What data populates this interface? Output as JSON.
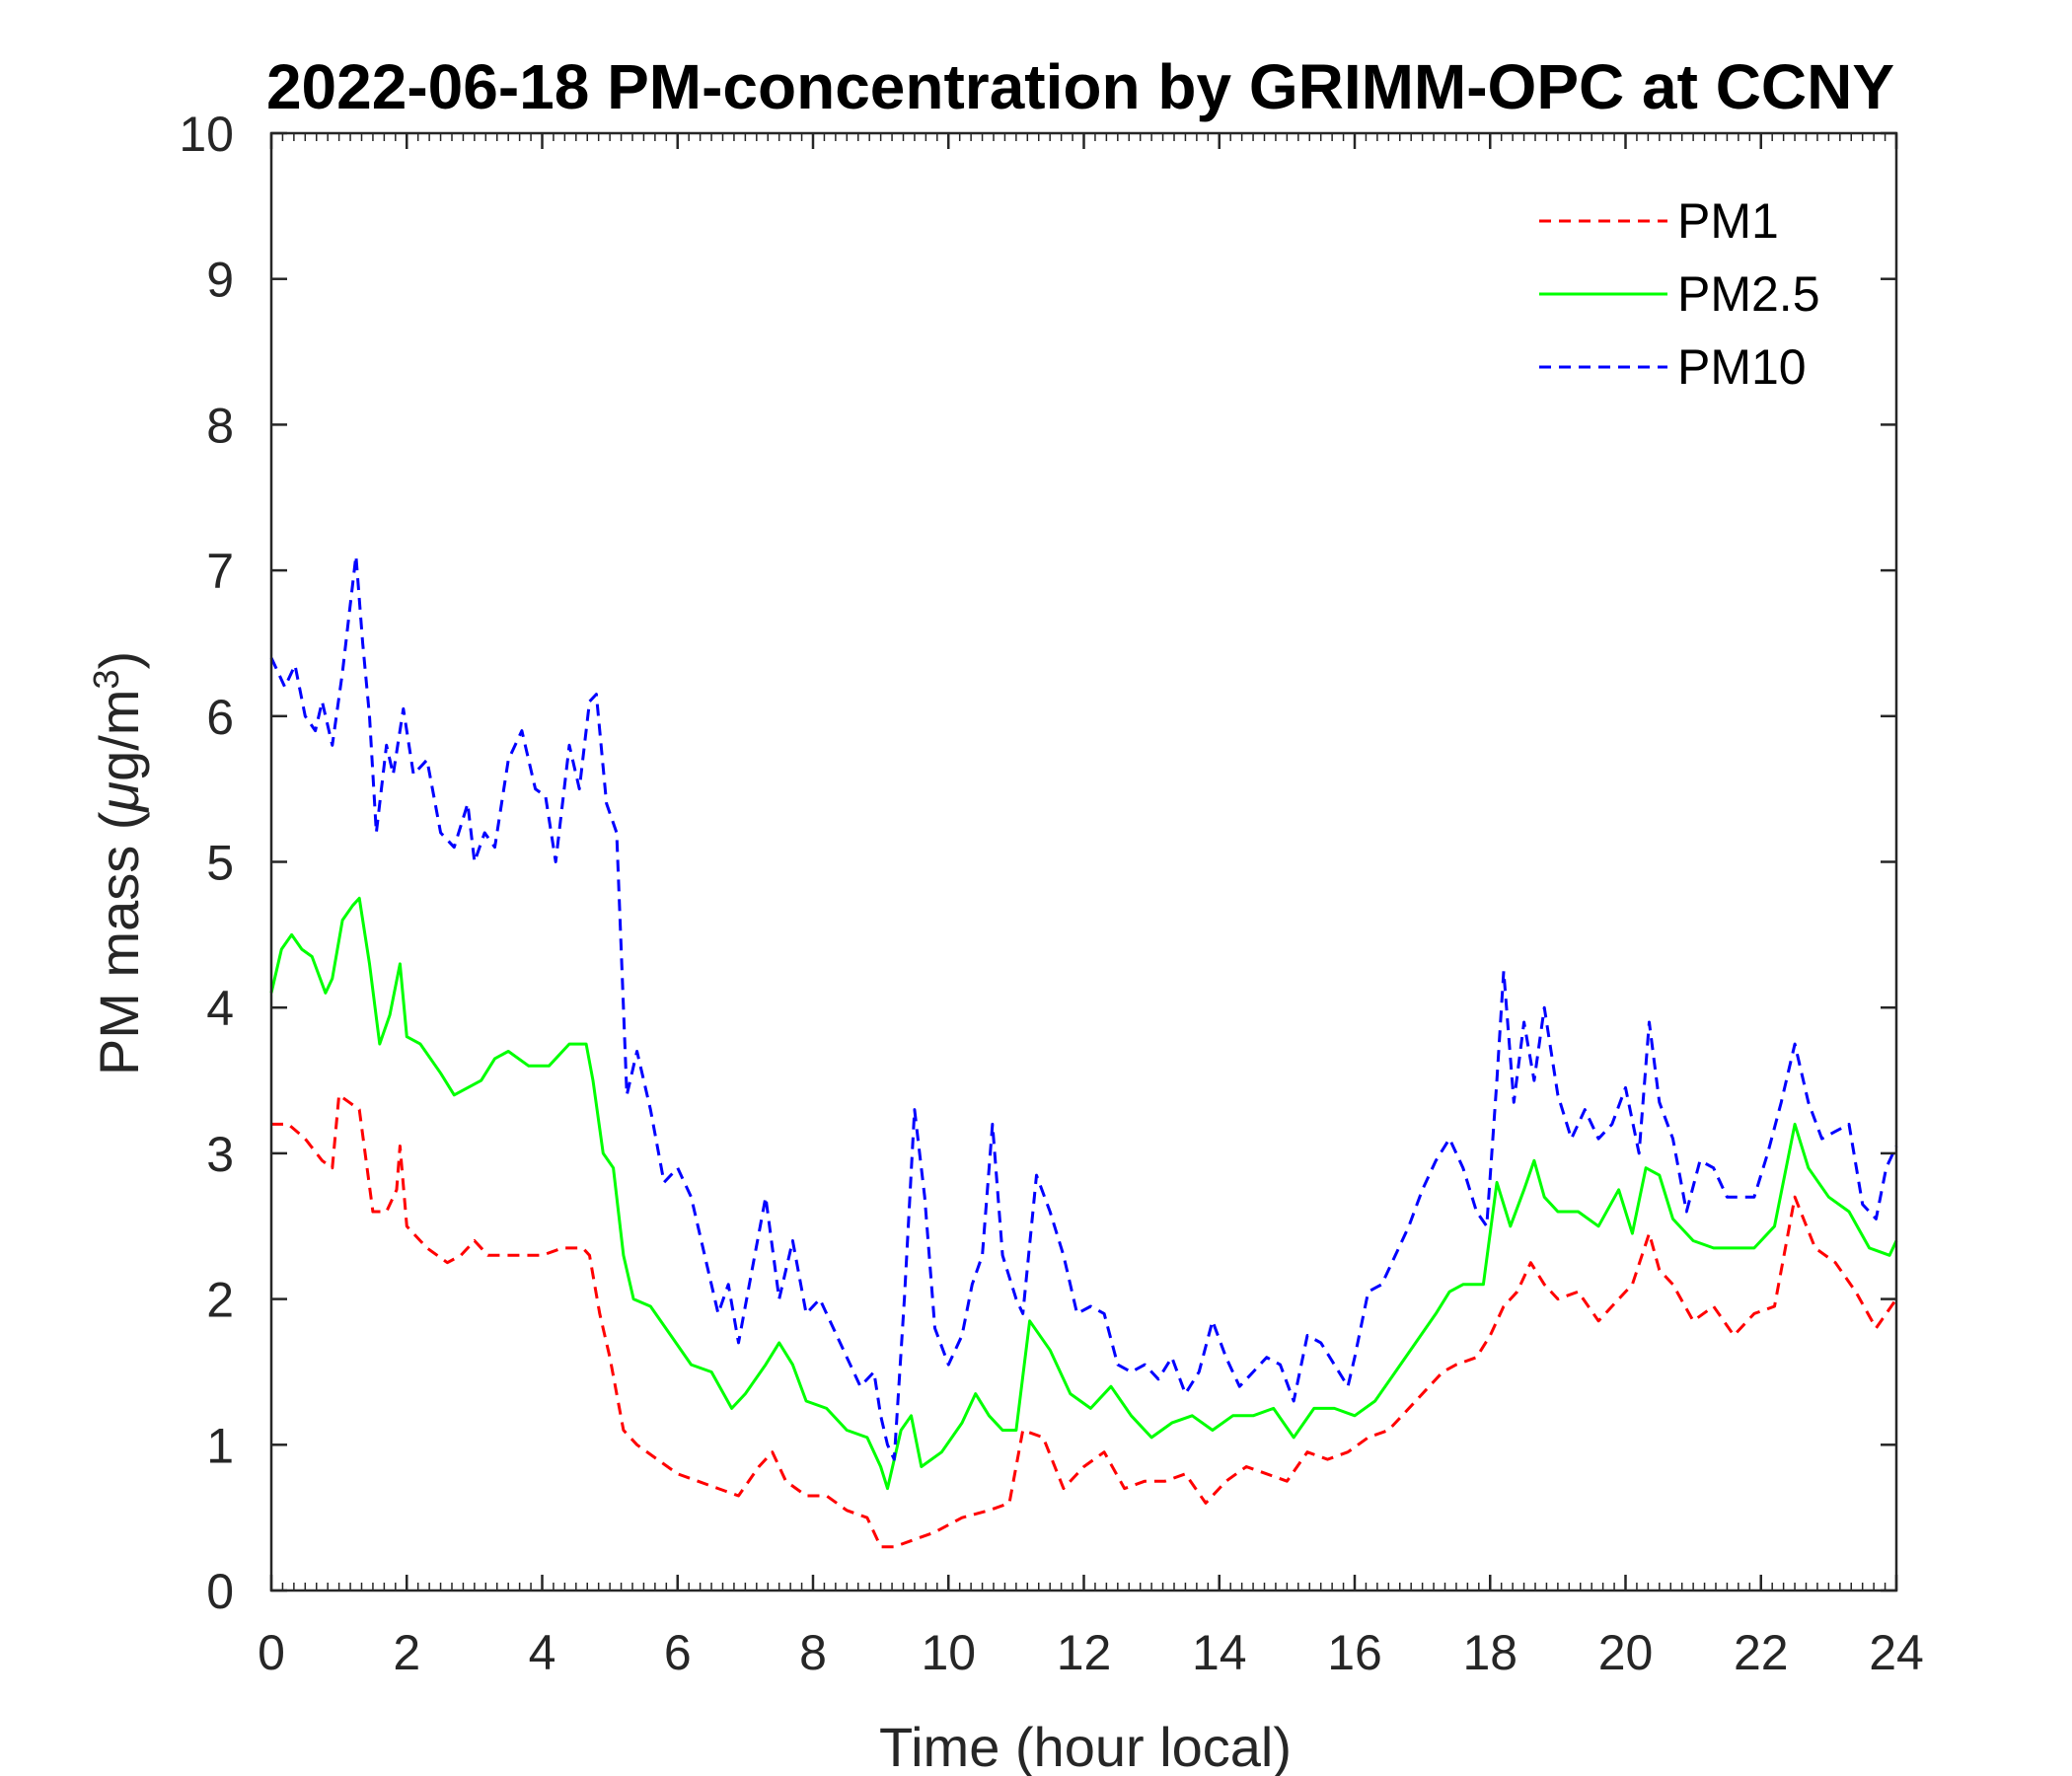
{
  "chart_data": {
    "type": "line",
    "title": "2022-06-18 PM-concentration by GRIMM-OPC at CCNY",
    "xlabel": "Time (hour local)",
    "ylabel": "PM mass (μg/m³)",
    "ylabel_parts": {
      "main": "PM mass (",
      "mu": "μ",
      "unit": "g/m",
      "sup": "3",
      "close": ")"
    },
    "xlim": [
      0,
      24
    ],
    "ylim": [
      0,
      10
    ],
    "x_ticks": [
      0,
      2,
      4,
      6,
      8,
      10,
      12,
      14,
      16,
      18,
      20,
      22,
      24
    ],
    "y_ticks": [
      0,
      1,
      2,
      3,
      4,
      5,
      6,
      7,
      8,
      9,
      10
    ],
    "grid": false,
    "legend_position": "top-right",
    "series": [
      {
        "name": "PM1",
        "color": "#ff0000",
        "style": "dashed",
        "x": [
          0,
          0.25,
          0.5,
          0.75,
          0.9,
          1.0,
          1.15,
          1.3,
          1.5,
          1.7,
          1.85,
          1.9,
          2.0,
          2.3,
          2.6,
          2.8,
          3.0,
          3.2,
          3.5,
          3.8,
          4.0,
          4.3,
          4.6,
          4.7,
          4.85,
          5.0,
          5.2,
          5.4,
          5.7,
          6.0,
          6.3,
          6.6,
          6.9,
          7.2,
          7.4,
          7.6,
          7.9,
          8.2,
          8.5,
          8.8,
          9.0,
          9.2,
          9.5,
          9.8,
          10.2,
          10.6,
          10.9,
          11.1,
          11.4,
          11.7,
          12.0,
          12.3,
          12.6,
          12.9,
          13.2,
          13.5,
          13.8,
          14.1,
          14.4,
          14.7,
          15.0,
          15.3,
          15.6,
          15.9,
          16.2,
          16.5,
          16.8,
          17.1,
          17.3,
          17.5,
          17.8,
          18.0,
          18.2,
          18.4,
          18.6,
          18.8,
          19.0,
          19.3,
          19.6,
          19.9,
          20.1,
          20.35,
          20.5,
          20.7,
          21.0,
          21.3,
          21.6,
          21.9,
          22.2,
          22.5,
          22.8,
          23.1,
          23.4,
          23.7,
          24.0
        ],
        "values": [
          3.2,
          3.2,
          3.1,
          2.95,
          2.9,
          3.4,
          3.35,
          3.3,
          2.6,
          2.6,
          2.75,
          3.05,
          2.5,
          2.35,
          2.25,
          2.3,
          2.4,
          2.3,
          2.3,
          2.3,
          2.3,
          2.35,
          2.35,
          2.3,
          1.9,
          1.6,
          1.1,
          1.0,
          0.9,
          0.8,
          0.75,
          0.7,
          0.65,
          0.85,
          0.95,
          0.75,
          0.65,
          0.65,
          0.55,
          0.5,
          0.3,
          0.3,
          0.35,
          0.4,
          0.5,
          0.55,
          0.6,
          1.1,
          1.05,
          0.7,
          0.85,
          0.95,
          0.7,
          0.75,
          0.75,
          0.8,
          0.6,
          0.75,
          0.85,
          0.8,
          0.75,
          0.95,
          0.9,
          0.95,
          1.05,
          1.1,
          1.25,
          1.4,
          1.5,
          1.55,
          1.6,
          1.75,
          1.95,
          2.05,
          2.25,
          2.1,
          2.0,
          2.05,
          1.85,
          2.0,
          2.1,
          2.45,
          2.2,
          2.1,
          1.85,
          1.95,
          1.75,
          1.9,
          1.95,
          2.7,
          2.35,
          2.25,
          2.05,
          1.8,
          2.0
        ]
      },
      {
        "name": "PM2.5",
        "color": "#00ff00",
        "style": "solid",
        "x": [
          0,
          0.15,
          0.3,
          0.45,
          0.6,
          0.8,
          0.9,
          1.05,
          1.2,
          1.3,
          1.45,
          1.6,
          1.75,
          1.9,
          2.0,
          2.2,
          2.5,
          2.7,
          2.9,
          3.1,
          3.3,
          3.5,
          3.8,
          4.1,
          4.4,
          4.65,
          4.75,
          4.9,
          5.05,
          5.2,
          5.35,
          5.6,
          5.9,
          6.2,
          6.5,
          6.8,
          7.0,
          7.3,
          7.5,
          7.7,
          7.9,
          8.2,
          8.5,
          8.8,
          9.0,
          9.1,
          9.3,
          9.45,
          9.6,
          9.9,
          10.2,
          10.4,
          10.6,
          10.8,
          11.0,
          11.2,
          11.5,
          11.8,
          12.1,
          12.4,
          12.7,
          13.0,
          13.3,
          13.6,
          13.9,
          14.2,
          14.5,
          14.8,
          15.1,
          15.4,
          15.7,
          16.0,
          16.3,
          16.6,
          16.9,
          17.2,
          17.4,
          17.6,
          17.9,
          18.1,
          18.3,
          18.5,
          18.65,
          18.8,
          19.0,
          19.3,
          19.6,
          19.9,
          20.1,
          20.3,
          20.5,
          20.7,
          21.0,
          21.3,
          21.6,
          21.9,
          22.2,
          22.5,
          22.7,
          23.0,
          23.3,
          23.6,
          23.9,
          24.0
        ],
        "values": [
          4.1,
          4.4,
          4.5,
          4.4,
          4.35,
          4.1,
          4.2,
          4.6,
          4.7,
          4.75,
          4.3,
          3.75,
          3.95,
          4.3,
          3.8,
          3.75,
          3.55,
          3.4,
          3.45,
          3.5,
          3.65,
          3.7,
          3.6,
          3.6,
          3.75,
          3.75,
          3.5,
          3.0,
          2.9,
          2.3,
          2.0,
          1.95,
          1.75,
          1.55,
          1.5,
          1.25,
          1.35,
          1.55,
          1.7,
          1.55,
          1.3,
          1.25,
          1.1,
          1.05,
          0.85,
          0.7,
          1.1,
          1.2,
          0.85,
          0.95,
          1.15,
          1.35,
          1.2,
          1.1,
          1.1,
          1.85,
          1.65,
          1.35,
          1.25,
          1.4,
          1.2,
          1.05,
          1.15,
          1.2,
          1.1,
          1.2,
          1.2,
          1.25,
          1.05,
          1.25,
          1.25,
          1.2,
          1.3,
          1.5,
          1.7,
          1.9,
          2.05,
          2.1,
          2.1,
          2.8,
          2.5,
          2.75,
          2.95,
          2.7,
          2.6,
          2.6,
          2.5,
          2.75,
          2.45,
          2.9,
          2.85,
          2.55,
          2.4,
          2.35,
          2.35,
          2.35,
          2.5,
          3.2,
          2.9,
          2.7,
          2.6,
          2.35,
          2.3,
          2.4
        ]
      },
      {
        "name": "PM10",
        "color": "#0000ff",
        "style": "dashed",
        "x": [
          0,
          0.1,
          0.2,
          0.35,
          0.5,
          0.65,
          0.75,
          0.9,
          1.05,
          1.15,
          1.25,
          1.35,
          1.45,
          1.55,
          1.7,
          1.8,
          1.95,
          2.1,
          2.3,
          2.5,
          2.7,
          2.9,
          3.0,
          3.15,
          3.3,
          3.5,
          3.7,
          3.9,
          4.05,
          4.2,
          4.4,
          4.55,
          4.7,
          4.8,
          4.95,
          5.1,
          5.25,
          5.4,
          5.6,
          5.8,
          6.0,
          6.2,
          6.4,
          6.6,
          6.75,
          6.9,
          7.1,
          7.3,
          7.5,
          7.7,
          7.9,
          8.1,
          8.3,
          8.5,
          8.7,
          8.9,
          9.0,
          9.1,
          9.2,
          9.35,
          9.5,
          9.65,
          9.8,
          10.0,
          10.2,
          10.35,
          10.5,
          10.65,
          10.8,
          11.0,
          11.1,
          11.3,
          11.5,
          11.7,
          11.9,
          12.1,
          12.3,
          12.5,
          12.7,
          12.9,
          13.1,
          13.3,
          13.5,
          13.7,
          13.9,
          14.1,
          14.3,
          14.5,
          14.7,
          14.9,
          15.1,
          15.3,
          15.5,
          15.7,
          15.9,
          16.0,
          16.2,
          16.4,
          16.6,
          16.8,
          17.0,
          17.2,
          17.4,
          17.6,
          17.8,
          17.95,
          18.1,
          18.2,
          18.35,
          18.5,
          18.65,
          18.8,
          19.0,
          19.2,
          19.4,
          19.6,
          19.8,
          20.0,
          20.2,
          20.35,
          20.5,
          20.7,
          20.9,
          21.1,
          21.3,
          21.5,
          21.7,
          21.9,
          22.1,
          22.3,
          22.5,
          22.7,
          22.9,
          23.1,
          23.3,
          23.5,
          23.7,
          23.85,
          24.0
        ],
        "values": [
          6.4,
          6.3,
          6.2,
          6.35,
          6.0,
          5.9,
          6.1,
          5.8,
          6.3,
          6.7,
          7.1,
          6.5,
          6.0,
          5.2,
          5.8,
          5.6,
          6.05,
          5.6,
          5.7,
          5.2,
          5.1,
          5.4,
          5.0,
          5.2,
          5.1,
          5.7,
          5.9,
          5.5,
          5.45,
          5.0,
          5.8,
          5.5,
          6.1,
          6.15,
          5.4,
          5.2,
          3.4,
          3.7,
          3.3,
          2.8,
          2.9,
          2.7,
          2.3,
          1.9,
          2.1,
          1.7,
          2.2,
          2.7,
          2.0,
          2.4,
          1.9,
          2.0,
          1.8,
          1.6,
          1.4,
          1.5,
          1.2,
          1.0,
          0.9,
          2.0,
          3.3,
          2.7,
          1.8,
          1.55,
          1.75,
          2.1,
          2.3,
          3.2,
          2.3,
          2.0,
          1.9,
          2.85,
          2.6,
          2.3,
          1.9,
          1.95,
          1.9,
          1.55,
          1.5,
          1.55,
          1.45,
          1.6,
          1.35,
          1.5,
          1.85,
          1.6,
          1.4,
          1.5,
          1.6,
          1.55,
          1.3,
          1.75,
          1.7,
          1.55,
          1.4,
          1.6,
          2.05,
          2.1,
          2.3,
          2.5,
          2.75,
          2.95,
          3.1,
          2.9,
          2.6,
          2.5,
          3.5,
          4.25,
          3.35,
          3.9,
          3.5,
          4.0,
          3.4,
          3.1,
          3.3,
          3.1,
          3.2,
          3.45,
          3.0,
          3.9,
          3.35,
          3.1,
          2.6,
          2.95,
          2.9,
          2.7,
          2.7,
          2.7,
          3.0,
          3.35,
          3.75,
          3.35,
          3.1,
          3.15,
          3.2,
          2.65,
          2.55,
          2.9,
          3.05
        ]
      }
    ]
  }
}
